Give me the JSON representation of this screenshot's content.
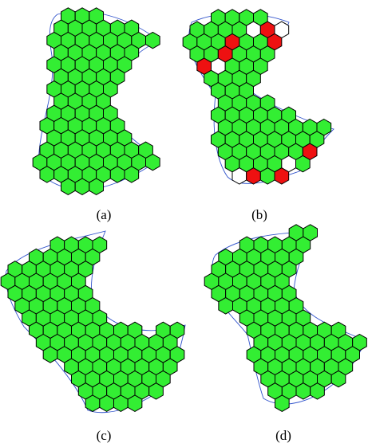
{
  "figure": {
    "panels": [
      {
        "id": "a",
        "caption": "(a)"
      },
      {
        "id": "b",
        "caption": "(b)"
      },
      {
        "id": "c",
        "caption": "(c)"
      },
      {
        "id": "d",
        "caption": "(d)"
      }
    ]
  },
  "colors": {
    "cell_fill": "#33ee33",
    "cell_red": "#ee1111",
    "cell_empty": "#ffffff",
    "cell_stroke": "#000000",
    "boundary": "#3355cc"
  }
}
